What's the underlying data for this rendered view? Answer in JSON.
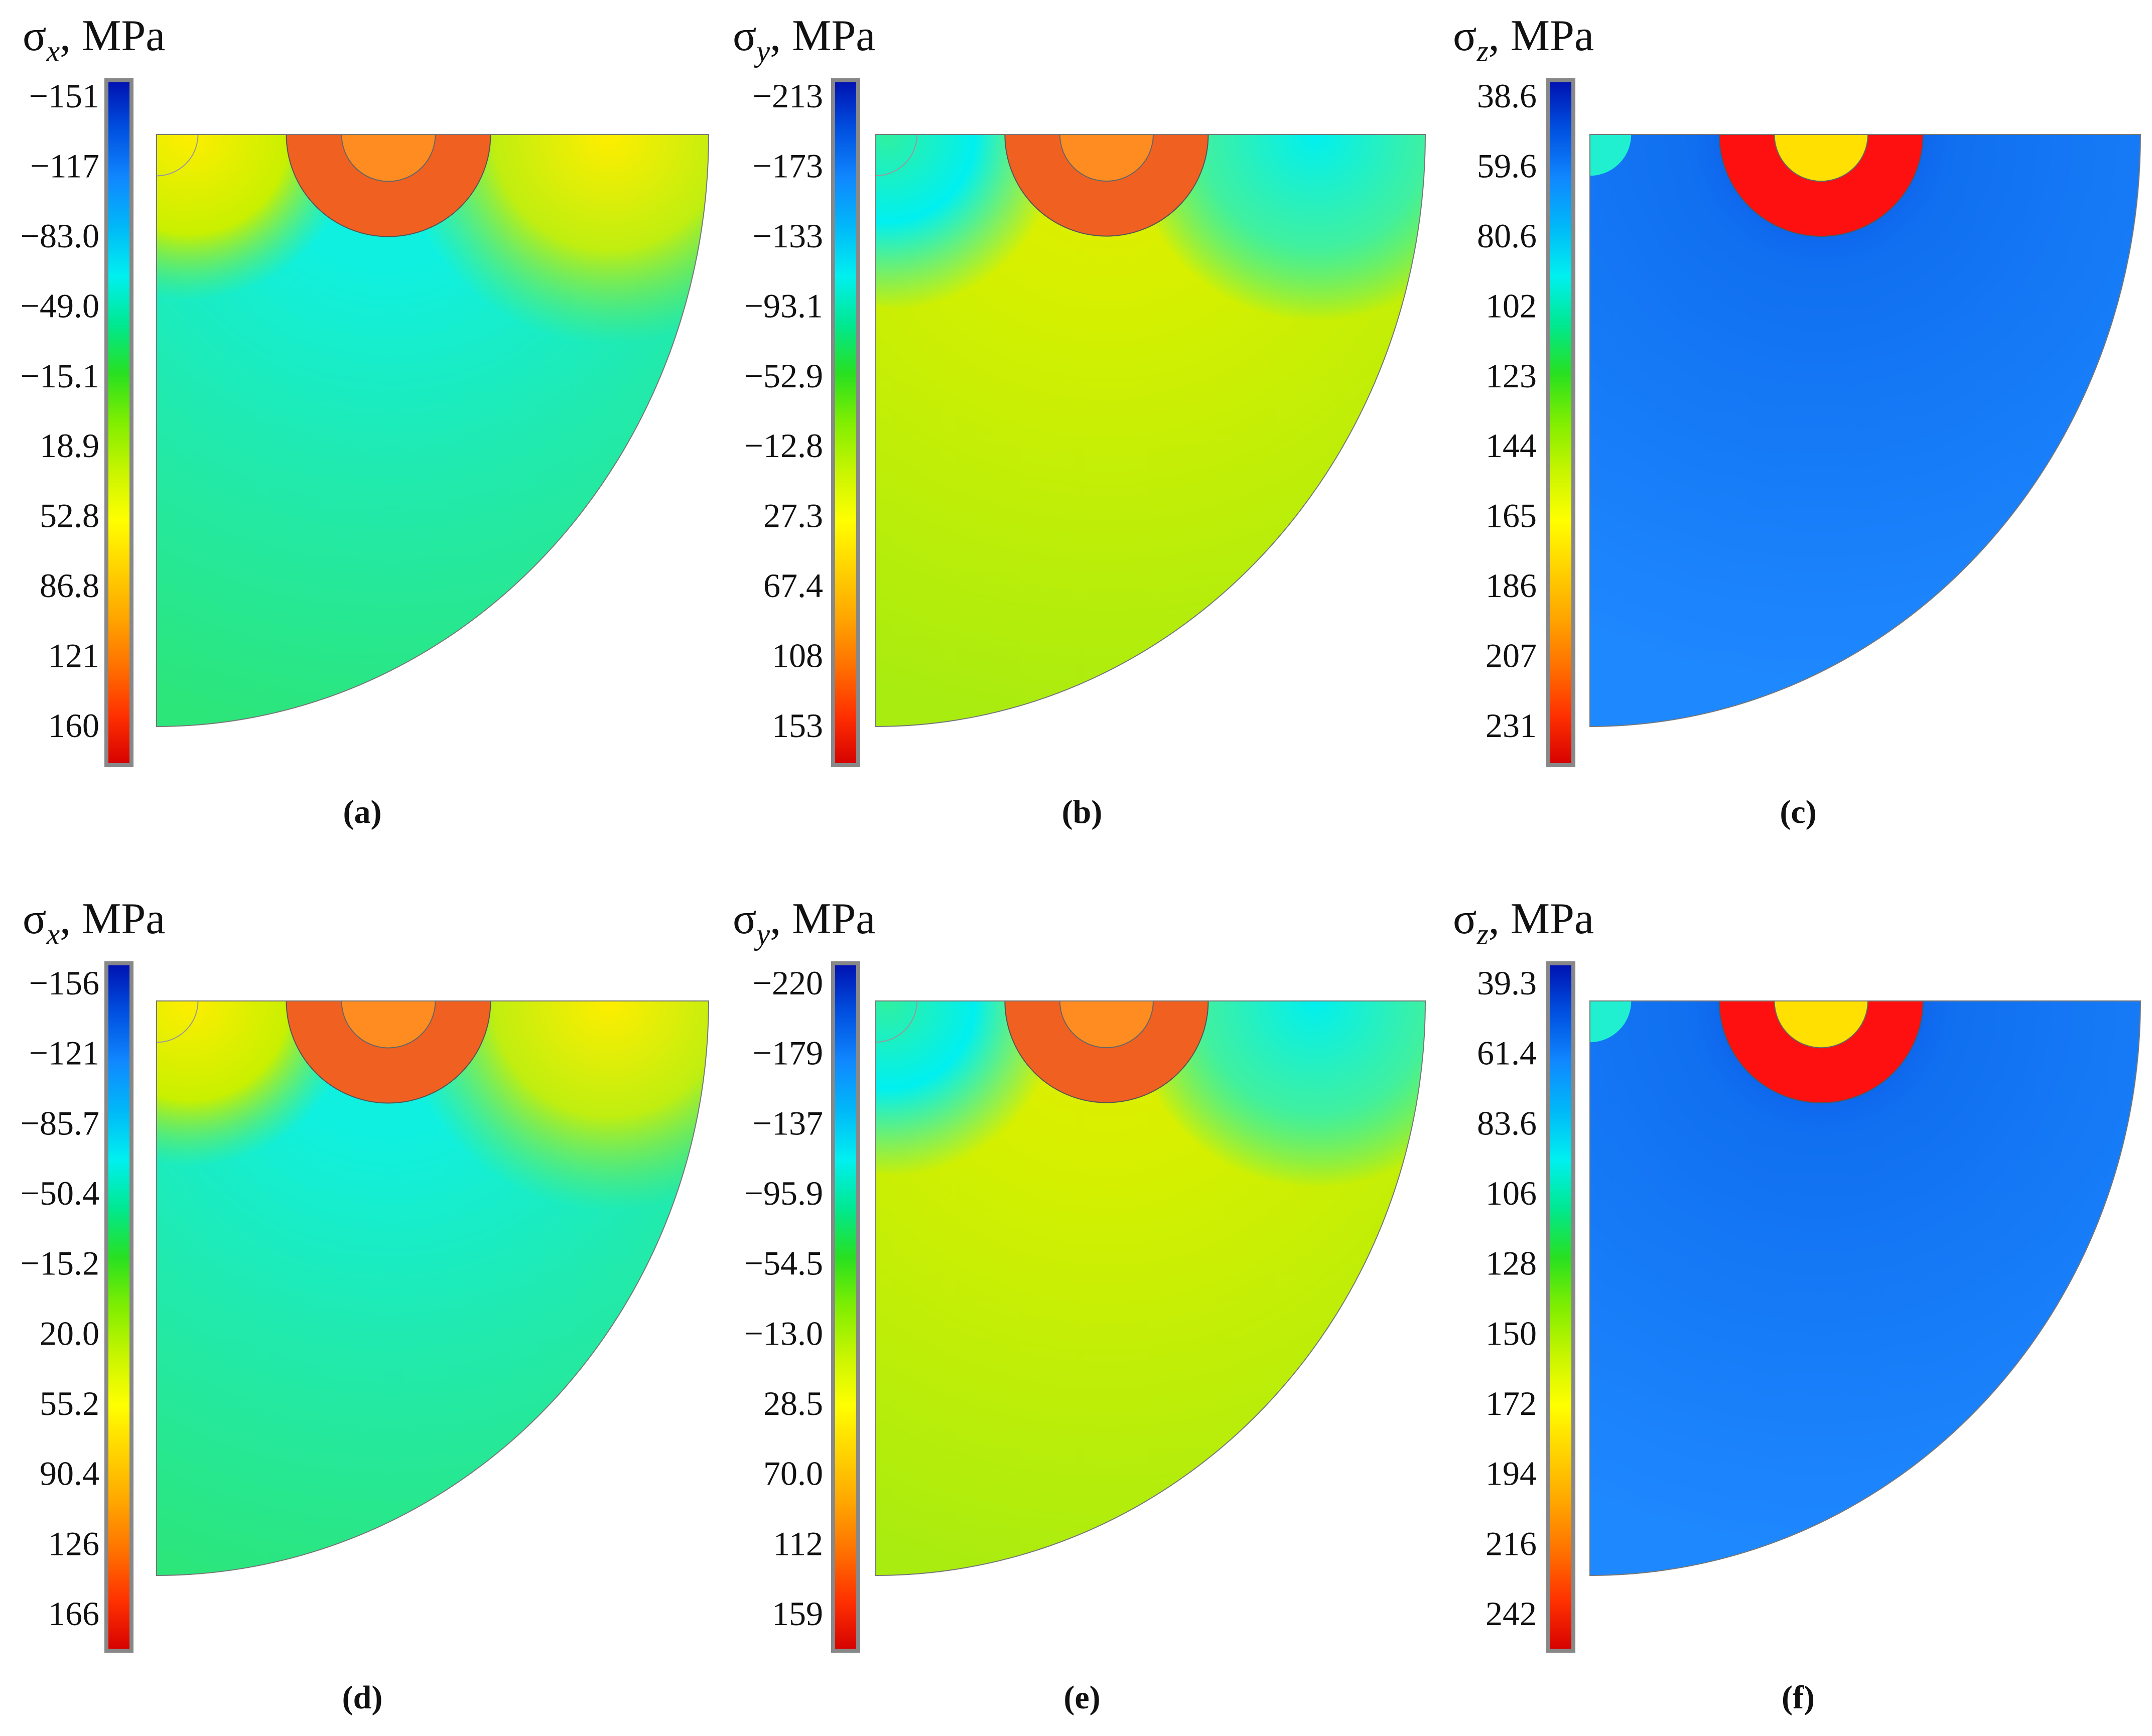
{
  "colors": {
    "scale": [
      "#d40000",
      "#ff3000",
      "#ff7000",
      "#ffa500",
      "#ffd200",
      "#ffff00",
      "#c8f500",
      "#80ee00",
      "#28e020",
      "#00e890",
      "#00f0f0",
      "#00b8f8",
      "#1088ff",
      "#0050e0",
      "#0010b0"
    ],
    "sigma_x_far": "#2ce67a",
    "sigma_x_mid": "#10f0e0",
    "sigma_x_near": "#ffee00",
    "sigma_y_far": "#a8ec10",
    "sigma_y_mid": "#e4ee00",
    "sigma_y_near": "#00f0f0",
    "sigma_z_far": "#1e88ff",
    "sigma_z_near": "#0a50e8",
    "ring_xy": "#f06020",
    "core_xy": "#ff8c20",
    "ring_z": "#ff1010",
    "core_z": "#ffe000",
    "corner_z": "#20f0d0"
  },
  "panels": [
    {
      "id": "a",
      "title_symbol": "σ",
      "title_sub": "x",
      "title_unit": ", MPa",
      "ticks": [
        "−151",
        "−117",
        "−83.0",
        "−49.0",
        "−15.1",
        "18.9",
        "52.8",
        "86.8",
        "121",
        "160"
      ],
      "caption": "(a)",
      "field": "x"
    },
    {
      "id": "b",
      "title_symbol": "σ",
      "title_sub": "y",
      "title_unit": ", MPa",
      "ticks": [
        "−213",
        "−173",
        "−133",
        "−93.1",
        "−52.9",
        "−12.8",
        "27.3",
        "67.4",
        "108",
        "153"
      ],
      "caption": "(b)",
      "field": "y"
    },
    {
      "id": "c",
      "title_symbol": "σ",
      "title_sub": "z",
      "title_unit": ", MPa",
      "ticks": [
        "38.6",
        "59.6",
        "80.6",
        "102",
        "123",
        "144",
        "165",
        "186",
        "207",
        "231"
      ],
      "caption": "(c)",
      "field": "z"
    },
    {
      "id": "d",
      "title_symbol": "σ",
      "title_sub": "x",
      "title_unit": ", MPa",
      "ticks": [
        "−156",
        "−121",
        "−85.7",
        "−50.4",
        "−15.2",
        "20.0",
        "55.2",
        "90.4",
        "126",
        "166"
      ],
      "caption": "(d)",
      "field": "x"
    },
    {
      "id": "e",
      "title_symbol": "σ",
      "title_sub": "y",
      "title_unit": ", MPa",
      "ticks": [
        "−220",
        "−179",
        "−137",
        "−95.9",
        "−54.5",
        "−13.0",
        "28.5",
        "70.0",
        "112",
        "159"
      ],
      "caption": "(e)",
      "field": "y"
    },
    {
      "id": "f",
      "title_symbol": "σ",
      "title_sub": "z",
      "title_unit": ", MPa",
      "ticks": [
        "39.3",
        "61.4",
        "83.6",
        "106",
        "128",
        "150",
        "172",
        "194",
        "216",
        "242"
      ],
      "caption": "(f)",
      "field": "z"
    }
  ]
}
